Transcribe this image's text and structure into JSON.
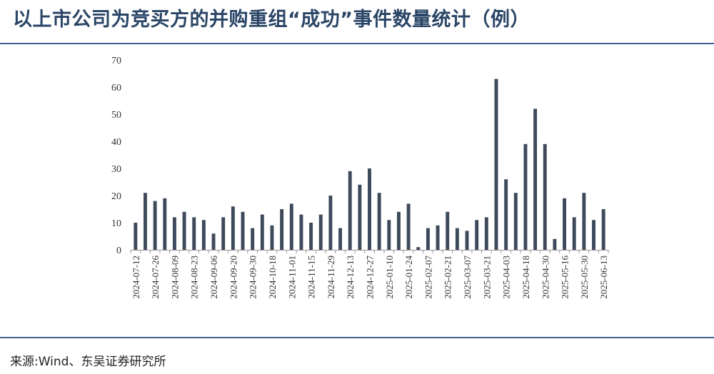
{
  "title": "以上市公司为竞买方的并购重组“成功”事件数量统计（例）",
  "source": "来源:Wind、东吴证券研究所",
  "colors": {
    "bar": "#3e4a5c",
    "rule": "#3f5f8c",
    "title": "#2a4566",
    "axis": "#999999"
  },
  "chart_data": {
    "type": "bar",
    "title": "以上市公司为竞买方的并购重组“成功”事件数量统计（例）",
    "xlabel": "",
    "ylabel": "",
    "ylim": [
      0,
      70
    ],
    "yticks": [
      0,
      10,
      20,
      30,
      40,
      50,
      60,
      70
    ],
    "grid": false,
    "legend": "none",
    "x_tick_labels": [
      "2024-07-12",
      "2024-07-26",
      "2024-08-09",
      "2024-08-23",
      "2024-09-06",
      "2024-09-20",
      "2024-09-30",
      "2024-10-18",
      "2024-11-01",
      "2024-11-15",
      "2024-11-29",
      "2024-12-13",
      "2024-12-27",
      "2025-01-10",
      "2025-01-24",
      "2025-02-07",
      "2025-02-21",
      "2025-03-07",
      "2025-03-21",
      "2025-04-03",
      "2025-04-18",
      "2025-04-30",
      "2025-05-16",
      "2025-05-30",
      "2025-06-13"
    ],
    "values": [
      10,
      21,
      18,
      19,
      12,
      14,
      12,
      11,
      6,
      12,
      16,
      14,
      8,
      13,
      9,
      15,
      17,
      13,
      10,
      13,
      20,
      8,
      29,
      24,
      30,
      21,
      11,
      14,
      17,
      1,
      8,
      9,
      14,
      8,
      7,
      11,
      12,
      63,
      26,
      21,
      39,
      52,
      39,
      4,
      19,
      12,
      21,
      11,
      15
    ]
  }
}
